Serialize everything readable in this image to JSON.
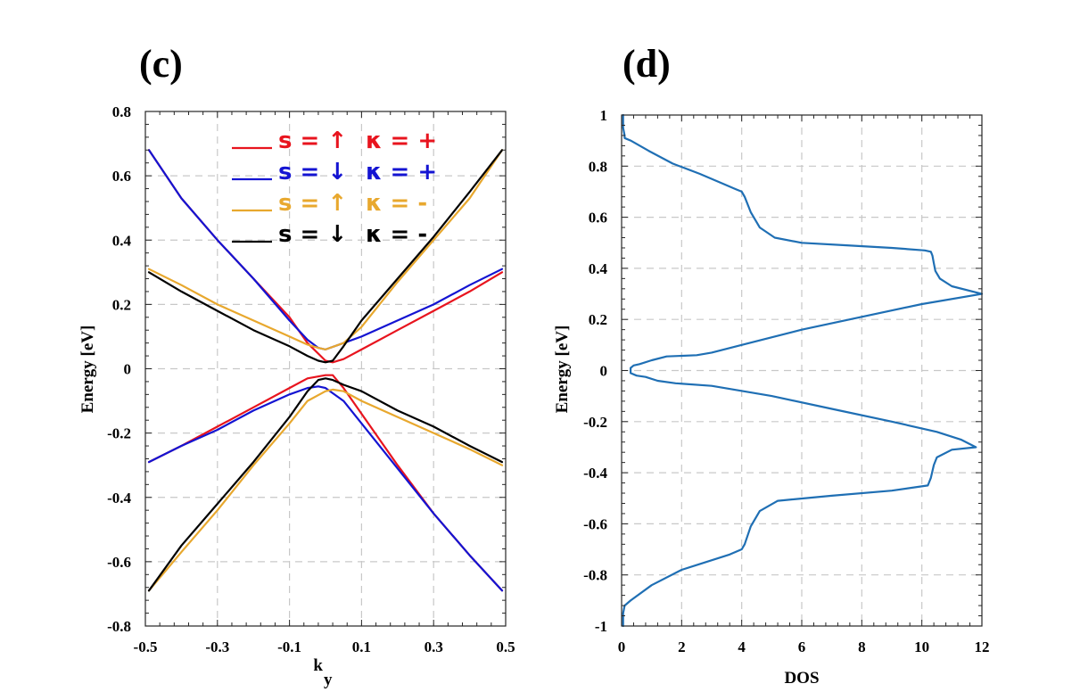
{
  "chart_data": [
    {
      "type": "line",
      "panel_label": "(c)",
      "xlabel": "k",
      "xlabel_sub": "y",
      "ylabel": "Energy [eV]",
      "xlim": [
        -0.5,
        0.5
      ],
      "ylim": [
        -0.8,
        0.8
      ],
      "xticks": [
        -0.5,
        -0.3,
        -0.1,
        0.1,
        0.3,
        0.5
      ],
      "xtick_labels": [
        "-0.5",
        "-0.3",
        "-0.1",
        "0.1",
        "0.3",
        "0.5"
      ],
      "yticks": [
        -0.8,
        -0.6,
        -0.4,
        -0.2,
        0,
        0.2,
        0.4,
        0.6,
        0.8
      ],
      "ytick_labels": [
        "-0.8",
        "-0.6",
        "-0.4",
        "-0.2",
        "0",
        "0.2",
        "0.4",
        "0.6",
        "0.8"
      ],
      "grid": true,
      "legend_position": "top",
      "series": [
        {
          "legend_s": "s = ↑",
          "legend_k": "κ = +",
          "color": "#e8141e",
          "branches": [
            {
              "x": [
                -0.49,
                -0.4,
                -0.3,
                -0.2,
                -0.1,
                -0.05,
                0.0,
                0.02,
                0.05,
                0.1,
                0.2,
                0.3,
                0.4,
                0.49
              ],
              "y": [
                0.68,
                0.53,
                0.4,
                0.28,
                0.16,
                0.08,
                0.025,
                0.02,
                0.03,
                0.06,
                0.12,
                0.18,
                0.24,
                0.3
              ]
            },
            {
              "x": [
                -0.49,
                -0.4,
                -0.3,
                -0.2,
                -0.1,
                -0.05,
                0.0,
                0.02,
                0.05,
                0.1,
                0.2,
                0.3,
                0.4,
                0.49
              ],
              "y": [
                -0.29,
                -0.24,
                -0.18,
                -0.12,
                -0.06,
                -0.03,
                -0.02,
                -0.02,
                -0.06,
                -0.14,
                -0.3,
                -0.45,
                -0.58,
                -0.69
              ]
            }
          ]
        },
        {
          "legend_s": "s = ↓",
          "legend_k": "κ = +",
          "color": "#1414d2",
          "branches": [
            {
              "x": [
                -0.49,
                -0.4,
                -0.3,
                -0.2,
                -0.1,
                -0.05,
                -0.02,
                0.0,
                0.05,
                0.1,
                0.2,
                0.3,
                0.4,
                0.49
              ],
              "y": [
                0.68,
                0.53,
                0.4,
                0.28,
                0.15,
                0.09,
                0.065,
                0.06,
                0.08,
                0.1,
                0.15,
                0.2,
                0.26,
                0.31
              ]
            },
            {
              "x": [
                -0.49,
                -0.4,
                -0.3,
                -0.2,
                -0.1,
                -0.05,
                -0.02,
                0.0,
                0.05,
                0.1,
                0.2,
                0.3,
                0.4,
                0.49
              ],
              "y": [
                -0.29,
                -0.24,
                -0.19,
                -0.13,
                -0.08,
                -0.06,
                -0.055,
                -0.06,
                -0.1,
                -0.17,
                -0.31,
                -0.45,
                -0.58,
                -0.69
              ]
            }
          ]
        },
        {
          "legend_s": "s = ↑",
          "legend_k": "κ = -",
          "color": "#e8a82e",
          "branches": [
            {
              "x": [
                -0.49,
                -0.4,
                -0.3,
                -0.2,
                -0.1,
                -0.05,
                -0.02,
                0.0,
                0.05,
                0.1,
                0.2,
                0.3,
                0.4,
                0.49
              ],
              "y": [
                0.31,
                0.26,
                0.2,
                0.15,
                0.1,
                0.075,
                0.065,
                0.06,
                0.08,
                0.13,
                0.27,
                0.4,
                0.53,
                0.68
              ]
            },
            {
              "x": [
                -0.49,
                -0.4,
                -0.3,
                -0.2,
                -0.1,
                -0.05,
                0.0,
                0.02,
                0.05,
                0.1,
                0.2,
                0.3,
                0.4,
                0.49
              ],
              "y": [
                -0.69,
                -0.57,
                -0.44,
                -0.3,
                -0.17,
                -0.1,
                -0.07,
                -0.065,
                -0.07,
                -0.1,
                -0.15,
                -0.2,
                -0.25,
                -0.3
              ]
            }
          ]
        },
        {
          "legend_s": "s = ↓",
          "legend_k": "κ = -",
          "color": "#000000",
          "branches": [
            {
              "x": [
                -0.49,
                -0.4,
                -0.3,
                -0.2,
                -0.1,
                -0.05,
                -0.02,
                0.0,
                0.02,
                0.05,
                0.1,
                0.2,
                0.3,
                0.4,
                0.49
              ],
              "y": [
                0.3,
                0.24,
                0.18,
                0.12,
                0.07,
                0.04,
                0.025,
                0.02,
                0.025,
                0.07,
                0.15,
                0.28,
                0.41,
                0.55,
                0.68
              ]
            },
            {
              "x": [
                -0.49,
                -0.4,
                -0.3,
                -0.2,
                -0.1,
                -0.05,
                -0.02,
                0.0,
                0.02,
                0.05,
                0.1,
                0.2,
                0.3,
                0.4,
                0.49
              ],
              "y": [
                -0.69,
                -0.55,
                -0.42,
                -0.29,
                -0.15,
                -0.07,
                -0.035,
                -0.03,
                -0.035,
                -0.05,
                -0.07,
                -0.13,
                -0.18,
                -0.24,
                -0.29
              ]
            }
          ]
        }
      ]
    },
    {
      "type": "line",
      "panel_label": "(d)",
      "xlabel": "DOS",
      "ylabel": "Energy [eV]",
      "xlim": [
        0,
        12
      ],
      "ylim": [
        -1,
        1
      ],
      "xticks": [
        0,
        2,
        4,
        6,
        8,
        10,
        12
      ],
      "xtick_labels": [
        "0",
        "2",
        "4",
        "6",
        "8",
        "10",
        "12"
      ],
      "yticks": [
        -1,
        -0.8,
        -0.6,
        -0.4,
        -0.2,
        0,
        0.2,
        0.4,
        0.6,
        0.8,
        1
      ],
      "ytick_labels": [
        "-1",
        "-0.8",
        "-0.6",
        "-0.4",
        "-0.2",
        "0",
        "0.2",
        "0.4",
        "0.6",
        "0.8",
        "1"
      ],
      "grid": true,
      "series": [
        {
          "color": "#1f6fb4",
          "x": [
            0.05,
            0.05,
            0.1,
            0.1,
            0.3,
            0.9,
            1.7,
            2.6,
            3.4,
            3.8,
            4.0,
            4.1,
            4.3,
            4.6,
            5.1,
            6.0,
            7.5,
            9.0,
            10.1,
            10.3,
            10.35,
            10.4,
            10.45,
            10.6,
            11.0,
            12.0,
            10.0,
            8.0,
            6.0,
            4.0,
            3.0,
            2.5,
            1.5,
            1.0,
            0.6,
            0.4,
            0.3,
            0.3,
            0.5,
            0.8,
            1.2,
            1.8,
            3.0,
            5.0,
            7.0,
            9.0,
            10.5,
            11.3,
            11.8,
            11.0,
            10.5,
            10.4,
            10.3,
            10.2,
            9.0,
            7.0,
            5.2,
            4.6,
            4.3,
            4.1,
            4.0,
            3.6,
            2.0,
            1.0,
            0.3,
            0.1,
            0.05,
            0.05
          ],
          "y": [
            1.0,
            0.95,
            0.92,
            0.91,
            0.9,
            0.86,
            0.81,
            0.77,
            0.73,
            0.71,
            0.7,
            0.68,
            0.62,
            0.56,
            0.52,
            0.5,
            0.49,
            0.48,
            0.47,
            0.465,
            0.45,
            0.42,
            0.39,
            0.36,
            0.33,
            0.3,
            0.26,
            0.21,
            0.16,
            0.1,
            0.07,
            0.06,
            0.055,
            0.04,
            0.025,
            0.02,
            0.01,
            -0.01,
            -0.02,
            -0.025,
            -0.04,
            -0.05,
            -0.06,
            -0.1,
            -0.15,
            -0.2,
            -0.24,
            -0.27,
            -0.3,
            -0.31,
            -0.34,
            -0.37,
            -0.42,
            -0.45,
            -0.47,
            -0.49,
            -0.51,
            -0.55,
            -0.61,
            -0.68,
            -0.7,
            -0.72,
            -0.78,
            -0.84,
            -0.9,
            -0.92,
            -0.95,
            -1.0
          ]
        }
      ]
    }
  ]
}
